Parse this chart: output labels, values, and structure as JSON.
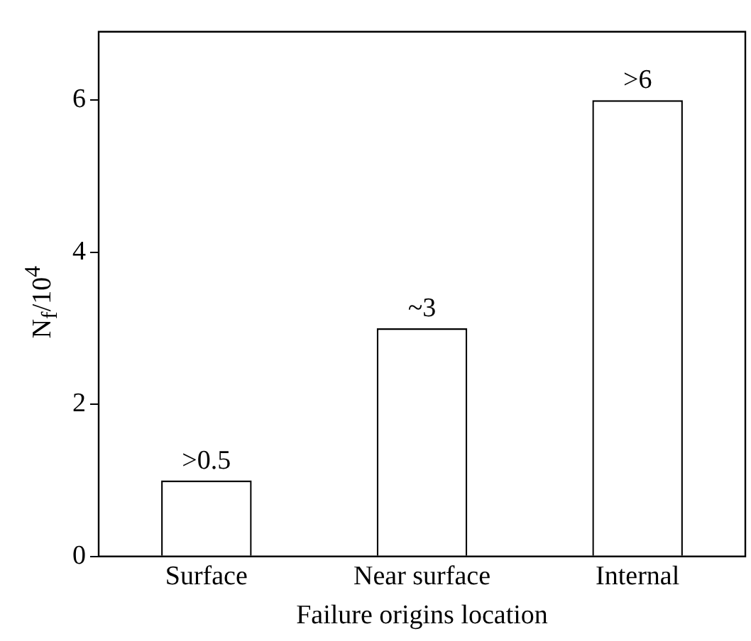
{
  "chart_data": {
    "type": "bar",
    "xlabel": "Failure origins location",
    "ylabel": "N$_{f}$/10$^{4}$",
    "categories": [
      "Surface",
      "Near surface",
      "Internal"
    ],
    "values": [
      1,
      3,
      6
    ],
    "value_labels": [
      ">0.5",
      "~3",
      ">6"
    ],
    "color": "#ffffff",
    "ylim": [
      0,
      6.9
    ],
    "yticks": [
      0,
      2,
      4,
      6
    ],
    "grid": false,
    "legend": false
  }
}
